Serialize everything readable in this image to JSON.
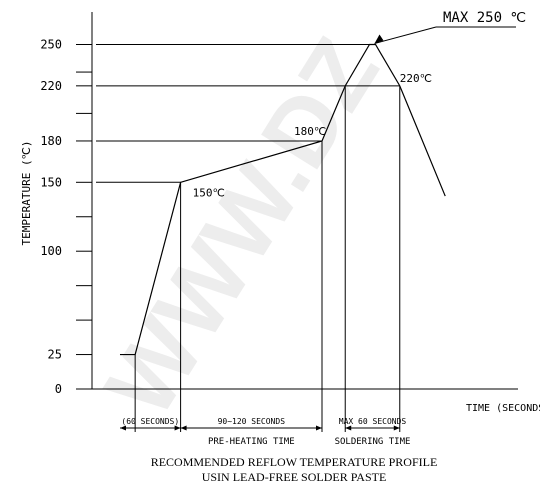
{
  "chart_data": {
    "type": "line",
    "title": "MAX 250 ℃",
    "ylabel": "TEMPERATURE (℃)",
    "xlabel": "TIME (SECONDS)",
    "ylim": [
      0,
      265
    ],
    "y_ticks": [
      {
        "value": 0,
        "label": "0"
      },
      {
        "value": 25,
        "label": "25"
      },
      {
        "value": 50,
        "label": ""
      },
      {
        "value": 75,
        "label": ""
      },
      {
        "value": 100,
        "label": "100"
      },
      {
        "value": 125,
        "label": ""
      },
      {
        "value": 150,
        "label": "150"
      },
      {
        "value": 180,
        "label": "180"
      },
      {
        "value": 200,
        "label": ""
      },
      {
        "value": 220,
        "label": "220"
      },
      {
        "value": 230,
        "label": ""
      },
      {
        "value": 250,
        "label": "250"
      }
    ],
    "series": [
      {
        "points": [
          {
            "t": 0,
            "temp": 25
          },
          {
            "t": 15,
            "temp": 25
          },
          {
            "t": 60,
            "temp": 150
          },
          {
            "t": 200,
            "temp": 180
          },
          {
            "t": 223,
            "temp": 220
          },
          {
            "t": 247,
            "temp": 250
          },
          {
            "t": 253,
            "temp": 250
          },
          {
            "t": 277,
            "temp": 220
          },
          {
            "t": 322,
            "temp": 140
          }
        ]
      }
    ],
    "reference_lines": [
      {
        "temp": 250,
        "t_end": 250
      },
      {
        "temp": 220,
        "t_end": 277
      },
      {
        "temp": 180,
        "t_end": 200
      },
      {
        "temp": 150,
        "t_end": 60
      }
    ],
    "verticals": [
      15,
      60,
      200,
      223,
      277
    ],
    "point_labels": [
      {
        "text": "150℃",
        "t": 60,
        "temp": 150
      },
      {
        "text": "180℃",
        "t": 200,
        "temp": 180
      },
      {
        "text": "220℃",
        "t": 277,
        "temp": 220
      }
    ],
    "annotations": {
      "max_label": "MAX 250 ℃"
    },
    "intervals": [
      {
        "label": "(60 SECONDS)",
        "from": 0,
        "to": 60,
        "caption": ""
      },
      {
        "label": "90~120 SECONDS",
        "from": 60,
        "to": 200,
        "caption": "PRE-HEATING TIME"
      },
      {
        "label": "MAX 60 SECONDS",
        "from": 223,
        "to": 277,
        "caption": "SOLDERING TIME"
      }
    ],
    "caption": [
      "RECOMMENDED REFLOW TEMPERATURE PROFILE",
      "USIN LEAD-FREE SOLDER PASTE"
    ],
    "watermark": "WWW.DZ"
  }
}
